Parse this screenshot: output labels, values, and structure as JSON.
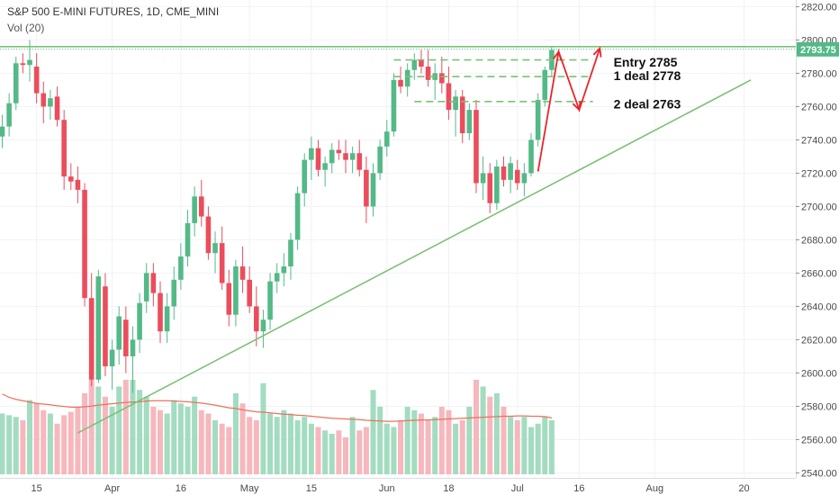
{
  "header": {
    "title": "S&P 500 E-MINI FUTURES, 1D, CME_MINI",
    "volume_label": "Vol (20)"
  },
  "colors": {
    "up": "#53b987",
    "down": "#eb4d5c",
    "up_volume": "#a3dcc0",
    "down_volume": "#f6b7bd",
    "volume_ma": "#e8735f",
    "trendline": "#7cc075",
    "dashed_levels": "#7cc075",
    "projection": "#e8262b",
    "price_box": "#53b987"
  },
  "chart_data": {
    "type": "candlestick",
    "symbol": "S&P 500 E-MINI FUTURES",
    "interval": "1D",
    "exchange": "CME_MINI",
    "y_range": [
      2537,
      2824
    ],
    "y_ticks": [
      2540,
      2560,
      2580,
      2600,
      2620,
      2640,
      2660,
      2680,
      2700,
      2720,
      2740,
      2760,
      2780,
      2800,
      2820
    ],
    "y_tick_labels": [
      "2540.00",
      "2560.00",
      "2580.00",
      "2600.00",
      "2620.00",
      "2640.00",
      "2660.00",
      "2680.00",
      "2700.00",
      "2720.00",
      "2740.00",
      "2760.00",
      "2780.00",
      "2800.00",
      "2820.00"
    ],
    "last_price": "2793.75",
    "x_ticks": [
      {
        "label": "15",
        "index": 5
      },
      {
        "label": "Apr",
        "index": 16
      },
      {
        "label": "16",
        "index": 26
      },
      {
        "label": "May",
        "index": 36
      },
      {
        "label": "15",
        "index": 45
      },
      {
        "label": "Jun",
        "index": 56
      },
      {
        "label": "18",
        "index": 65
      },
      {
        "label": "Jul",
        "index": 75
      },
      {
        "label": "16",
        "index": 84
      },
      {
        "label": "Aug",
        "index": 95
      },
      {
        "label": "20",
        "index": 108
      }
    ],
    "candles": [
      [
        2742,
        2755,
        2735,
        2748
      ],
      [
        2748,
        2768,
        2742,
        2762
      ],
      [
        2762,
        2790,
        2758,
        2786
      ],
      [
        2786,
        2792,
        2780,
        2785
      ],
      [
        2785,
        2800,
        2775,
        2788
      ],
      [
        2784,
        2792,
        2762,
        2768
      ],
      [
        2768,
        2775,
        2750,
        2760
      ],
      [
        2760,
        2770,
        2752,
        2765
      ],
      [
        2766,
        2772,
        2748,
        2752
      ],
      [
        2752,
        2758,
        2710,
        2718
      ],
      [
        2718,
        2726,
        2710,
        2715
      ],
      [
        2716,
        2724,
        2702,
        2710
      ],
      [
        2710,
        2714,
        2640,
        2645
      ],
      [
        2645,
        2660,
        2592,
        2596
      ],
      [
        2596,
        2662,
        2594,
        2658
      ],
      [
        2652,
        2660,
        2598,
        2604
      ],
      [
        2604,
        2620,
        2590,
        2614
      ],
      [
        2614,
        2640,
        2605,
        2634
      ],
      [
        2632,
        2640,
        2600,
        2610
      ],
      [
        2610,
        2628,
        2588,
        2620
      ],
      [
        2620,
        2648,
        2612,
        2642
      ],
      [
        2643,
        2666,
        2636,
        2660
      ],
      [
        2660,
        2666,
        2640,
        2648
      ],
      [
        2648,
        2655,
        2618,
        2625
      ],
      [
        2625,
        2648,
        2618,
        2640
      ],
      [
        2640,
        2664,
        2632,
        2656
      ],
      [
        2656,
        2678,
        2650,
        2670
      ],
      [
        2670,
        2698,
        2664,
        2690
      ],
      [
        2690,
        2712,
        2682,
        2706
      ],
      [
        2706,
        2716,
        2688,
        2694
      ],
      [
        2694,
        2700,
        2668,
        2672
      ],
      [
        2672,
        2685,
        2660,
        2678
      ],
      [
        2678,
        2688,
        2650,
        2654
      ],
      [
        2654,
        2662,
        2628,
        2635
      ],
      [
        2635,
        2668,
        2628,
        2664
      ],
      [
        2664,
        2676,
        2648,
        2656
      ],
      [
        2656,
        2664,
        2636,
        2640
      ],
      [
        2640,
        2652,
        2616,
        2625
      ],
      [
        2625,
        2638,
        2615,
        2632
      ],
      [
        2632,
        2660,
        2626,
        2655
      ],
      [
        2655,
        2666,
        2648,
        2660
      ],
      [
        2660,
        2672,
        2652,
        2664
      ],
      [
        2664,
        2684,
        2656,
        2680
      ],
      [
        2680,
        2712,
        2674,
        2708
      ],
      [
        2708,
        2732,
        2700,
        2728
      ],
      [
        2728,
        2742,
        2716,
        2735
      ],
      [
        2735,
        2740,
        2718,
        2722
      ],
      [
        2722,
        2730,
        2712,
        2726
      ],
      [
        2726,
        2738,
        2720,
        2734
      ],
      [
        2734,
        2740,
        2728,
        2732
      ],
      [
        2732,
        2740,
        2720,
        2728
      ],
      [
        2728,
        2736,
        2720,
        2732
      ],
      [
        2732,
        2740,
        2718,
        2722
      ],
      [
        2722,
        2730,
        2690,
        2700
      ],
      [
        2700,
        2726,
        2694,
        2720
      ],
      [
        2720,
        2740,
        2716,
        2736
      ],
      [
        2736,
        2752,
        2730,
        2745
      ],
      [
        2745,
        2780,
        2742,
        2776
      ],
      [
        2776,
        2784,
        2768,
        2772
      ],
      [
        2772,
        2786,
        2766,
        2782
      ],
      [
        2782,
        2792,
        2776,
        2788
      ],
      [
        2788,
        2794,
        2780,
        2784
      ],
      [
        2784,
        2794,
        2772,
        2776
      ],
      [
        2776,
        2786,
        2764,
        2780
      ],
      [
        2780,
        2790,
        2768,
        2774
      ],
      [
        2774,
        2784,
        2752,
        2758
      ],
      [
        2758,
        2770,
        2742,
        2766
      ],
      [
        2766,
        2770,
        2738,
        2744
      ],
      [
        2744,
        2762,
        2740,
        2758
      ],
      [
        2758,
        2764,
        2708,
        2714
      ],
      [
        2714,
        2730,
        2704,
        2720
      ],
      [
        2720,
        2726,
        2696,
        2702
      ],
      [
        2702,
        2728,
        2698,
        2724
      ],
      [
        2724,
        2730,
        2712,
        2716
      ],
      [
        2716,
        2730,
        2708,
        2726
      ],
      [
        2722,
        2728,
        2710,
        2714
      ],
      [
        2714,
        2726,
        2706,
        2720
      ],
      [
        2720,
        2744,
        2718,
        2740
      ],
      [
        2740,
        2768,
        2736,
        2764
      ],
      [
        2764,
        2784,
        2760,
        2782
      ],
      [
        2782,
        2796,
        2778,
        2794
      ]
    ],
    "volume_range": [
      0,
      400000
    ],
    "volumes": [
      180000,
      175000,
      170000,
      160000,
      220000,
      210000,
      190000,
      180000,
      150000,
      175000,
      185000,
      200000,
      240000,
      280000,
      260000,
      230000,
      200000,
      260000,
      280000,
      280000,
      250000,
      230000,
      200000,
      190000,
      180000,
      220000,
      210000,
      200000,
      230000,
      190000,
      180000,
      160000,
      150000,
      140000,
      240000,
      210000,
      170000,
      160000,
      270000,
      180000,
      170000,
      190000,
      180000,
      160000,
      170000,
      150000,
      140000,
      130000,
      120000,
      130000,
      110000,
      170000,
      130000,
      140000,
      250000,
      200000,
      150000,
      140000,
      160000,
      200000,
      190000,
      180000,
      160000,
      170000,
      200000,
      190000,
      150000,
      160000,
      200000,
      280000,
      260000,
      230000,
      240000,
      200000,
      170000,
      160000,
      170000,
      140000,
      150000,
      170000,
      160000
    ],
    "volume_ma": [
      238000,
      228000,
      222000,
      218000,
      214000,
      210000,
      208000,
      206000,
      203000,
      201000,
      199000,
      199000,
      200000,
      202000,
      205000,
      207000,
      209000,
      211000,
      213000,
      214000,
      215000,
      217000,
      218000,
      218000,
      218000,
      217000,
      216000,
      215000,
      213000,
      211000,
      208000,
      205000,
      201000,
      197000,
      195000,
      191000,
      188000,
      185000,
      184000,
      182000,
      180000,
      178000,
      177000,
      175000,
      174000,
      172000,
      170000,
      168000,
      166000,
      165000,
      164000,
      163000,
      162000,
      160000,
      159000,
      158000,
      157000,
      157000,
      158000,
      159000,
      160000,
      161000,
      161000,
      162000,
      163000,
      164000,
      165000,
      166000,
      167000,
      168000,
      169000,
      170000,
      171000,
      172000,
      172000,
      173000,
      173000,
      172000,
      172000,
      171000,
      167000
    ],
    "horizontal_line": 2796,
    "trendline": [
      {
        "index": 11,
        "price": 2564
      },
      {
        "index": 109,
        "price": 2776
      }
    ],
    "dashed_levels": [
      {
        "price": 2788,
        "from": 57,
        "to": 86
      },
      {
        "price": 2778,
        "from": 57,
        "to": 86
      },
      {
        "price": 2763,
        "from": 60,
        "to": 86
      }
    ],
    "projection": [
      {
        "index": 78,
        "price": 2721
      },
      {
        "index": 81,
        "price": 2793
      },
      {
        "index": 84,
        "price": 2758
      },
      {
        "index": 87,
        "price": 2795
      }
    ],
    "annotations": [
      {
        "text": "Entry 2785",
        "price": 2784,
        "index": 89
      },
      {
        "text": "1 deal 2778",
        "price": 2776,
        "index": 89
      },
      {
        "text": "2 deal 2763",
        "price": 2759,
        "index": 89
      }
    ]
  }
}
